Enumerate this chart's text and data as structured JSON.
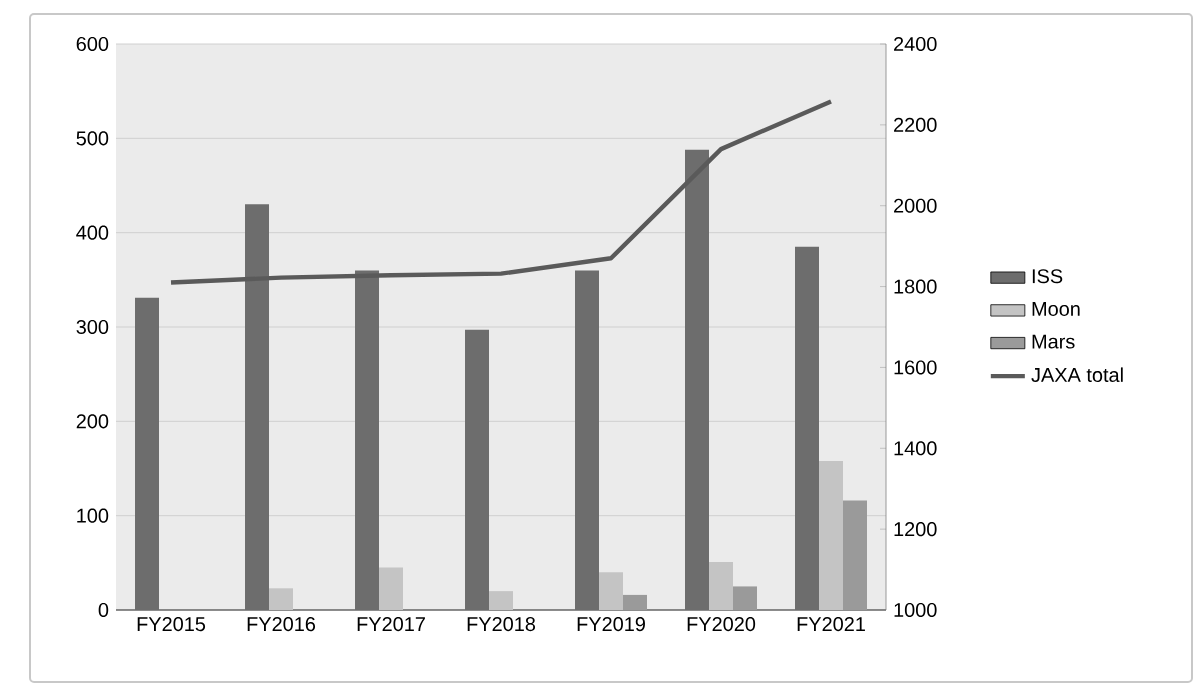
{
  "chart_data": {
    "type": "bar",
    "categories": [
      "FY2015",
      "FY2016",
      "FY2017",
      "FY2018",
      "FY2019",
      "FY2020",
      "FY2021"
    ],
    "series": [
      {
        "name": "ISS",
        "color": "#6d6d6d",
        "values": [
          331,
          430,
          360,
          297,
          360,
          488,
          385
        ]
      },
      {
        "name": "Moon",
        "color": "#c4c4c4",
        "values": [
          null,
          23,
          45,
          20,
          40,
          51,
          158
        ]
      },
      {
        "name": "Mars",
        "color": "#9a9a9a",
        "values": [
          null,
          null,
          null,
          null,
          16,
          25,
          116
        ]
      },
      {
        "name": "JAXA total",
        "color": "#5a5a5a",
        "type": "line",
        "axis": "y2",
        "values": [
          1810,
          1822,
          1828,
          1832,
          1870,
          2140,
          2258
        ]
      }
    ],
    "ylim": [
      0,
      600
    ],
    "yticks": [
      0,
      100,
      200,
      300,
      400,
      500,
      600
    ],
    "y2lim": [
      1000,
      2400
    ],
    "y2ticks": [
      1000,
      1200,
      1400,
      1600,
      1800,
      2000,
      2200,
      2400
    ],
    "grid": "y",
    "legend": "right"
  }
}
